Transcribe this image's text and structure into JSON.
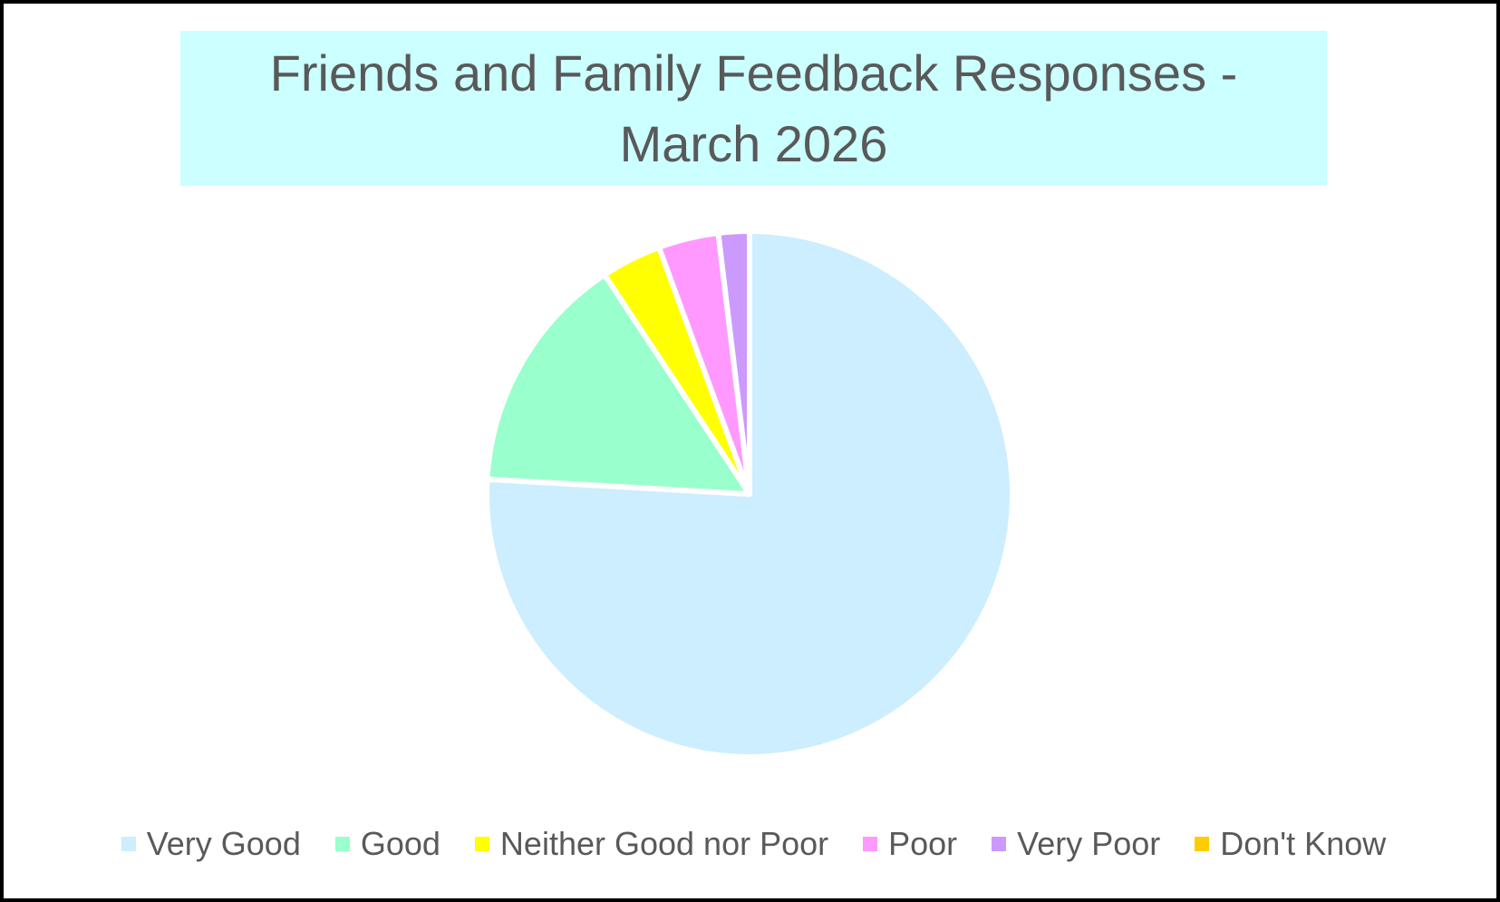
{
  "chart_data": {
    "type": "pie",
    "title": "Friends and Family Feedback Responses - March 2026",
    "title_background": "#ccffff",
    "start_angle": "12 o'clock, clockwise",
    "legend_position": "bottom",
    "categories": [
      "Very Good",
      "Good",
      "Neither Good nor Poor",
      "Poor",
      "Very Poor",
      "Don't Know"
    ],
    "values": [
      75.9,
      14.8,
      3.7,
      3.7,
      1.9,
      0
    ],
    "value_unit": "percent of responses",
    "colors": [
      "#cceeff",
      "#99ffcc",
      "#ffff00",
      "#ff99ff",
      "#cc99ff",
      "#ffcc00"
    ]
  }
}
